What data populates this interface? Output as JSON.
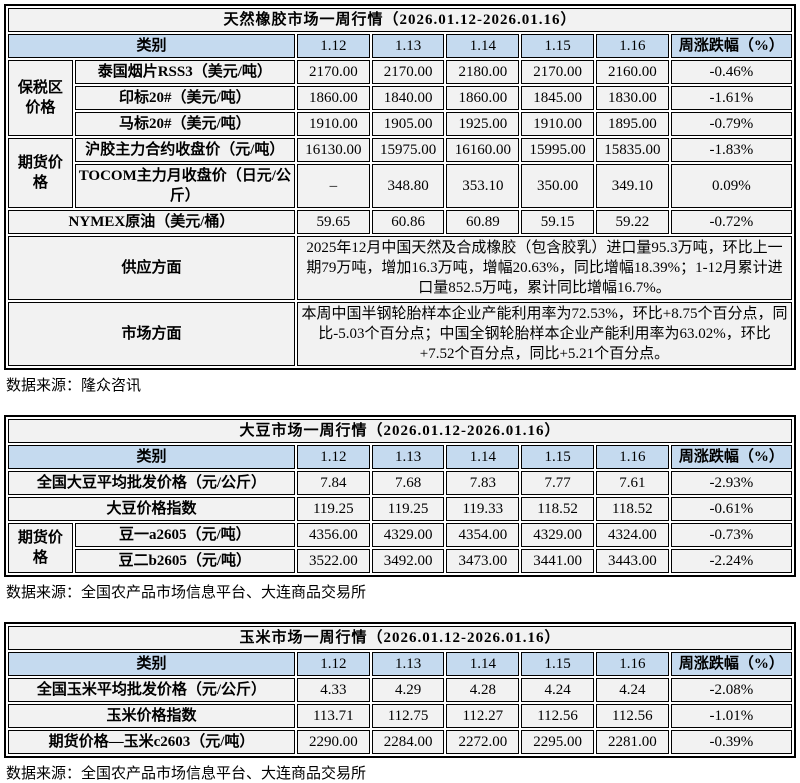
{
  "colors": {
    "title_bg": "#A6C9E8",
    "header_bg": "#C5DAEF",
    "row_bg": "#F2F2F2",
    "supply_label_bg": "#E3E3E3",
    "supply_text_bg": "#D9D9D9",
    "market_label_bg": "#CCE0F1",
    "market_text_bg": "#DEEBF7",
    "border": "#000000"
  },
  "rubber": {
    "title": "天然橡胶市场一周行情（2026.01.12-2026.01.16）",
    "header": {
      "category": "类别",
      "dates": [
        "1.12",
        "1.13",
        "1.14",
        "1.15",
        "1.16"
      ],
      "change": "周涨跌幅（%）"
    },
    "group_bonded": "保税区价格",
    "group_futures": "期货价格",
    "rows": [
      {
        "label": "泰国烟片RSS3（美元/吨）",
        "values": [
          "2170.00",
          "2170.00",
          "2180.00",
          "2170.00",
          "2160.00"
        ],
        "change": "-0.46%"
      },
      {
        "label": "印标20#（美元/吨）",
        "values": [
          "1860.00",
          "1840.00",
          "1860.00",
          "1845.00",
          "1830.00"
        ],
        "change": "-1.61%"
      },
      {
        "label": "马标20#（美元/吨）",
        "values": [
          "1910.00",
          "1905.00",
          "1925.00",
          "1910.00",
          "1895.00"
        ],
        "change": "-0.79%"
      },
      {
        "label": "沪胶主力合约收盘价（元/吨）",
        "values": [
          "16130.00",
          "15975.00",
          "16160.00",
          "15995.00",
          "15835.00"
        ],
        "change": "-1.83%"
      },
      {
        "label": "TOCOM主力月收盘价（日元/公斤）",
        "values": [
          "–",
          "348.80",
          "353.10",
          "350.00",
          "349.10"
        ],
        "change": "0.09%"
      },
      {
        "label": "NYMEX原油（美元/桶）",
        "values": [
          "59.65",
          "60.86",
          "60.89",
          "59.15",
          "59.22"
        ],
        "change": "-0.72%"
      }
    ],
    "supply": {
      "label": "供应方面",
      "text": "2025年12月中国天然及合成橡胶（包含胶乳）进口量95.3万吨，环比上一期79万吨，增加16.3万吨，增幅20.63%，同比增幅18.39%；1-12月累计进口量852.5万吨，累计同比增幅16.7%。"
    },
    "market": {
      "label": "市场方面",
      "text": "本周中国半钢轮胎样本企业产能利用率为72.53%，环比+8.75个百分点，同比-5.03个百分点；中国全钢轮胎样本企业产能利用率为63.02%，环比+7.52个百分点，同比+5.21个百分点。"
    },
    "source": "数据来源：隆众咨讯"
  },
  "soybean": {
    "title": "大豆市场一周行情（2026.01.12-2026.01.16）",
    "header": {
      "category": "类别",
      "dates": [
        "1.12",
        "1.13",
        "1.14",
        "1.15",
        "1.16"
      ],
      "change": "周涨跌幅（%）"
    },
    "group_futures": "期货价格",
    "rows": [
      {
        "label": "全国大豆平均批发价格（元/公斤）",
        "values": [
          "7.84",
          "7.68",
          "7.83",
          "7.77",
          "7.61"
        ],
        "change": "-2.93%"
      },
      {
        "label": "大豆价格指数",
        "values": [
          "119.25",
          "119.25",
          "119.33",
          "118.52",
          "118.52"
        ],
        "change": "-0.61%"
      },
      {
        "label": "豆一a2605（元/吨）",
        "values": [
          "4356.00",
          "4329.00",
          "4354.00",
          "4329.00",
          "4324.00"
        ],
        "change": "-0.73%"
      },
      {
        "label": "豆二b2605（元/吨）",
        "values": [
          "3522.00",
          "3492.00",
          "3473.00",
          "3441.00",
          "3443.00"
        ],
        "change": "-2.24%"
      }
    ],
    "source": "数据来源：全国农产品市场信息平台、大连商品交易所"
  },
  "corn": {
    "title": "玉米市场一周行情（2026.01.12-2026.01.16）",
    "header": {
      "category": "类别",
      "dates": [
        "1.12",
        "1.13",
        "1.14",
        "1.15",
        "1.16"
      ],
      "change": "周涨跌幅（%）"
    },
    "rows": [
      {
        "label": "全国玉米平均批发价格（元/公斤）",
        "values": [
          "4.33",
          "4.29",
          "4.28",
          "4.24",
          "4.24"
        ],
        "change": "-2.08%"
      },
      {
        "label": "玉米价格指数",
        "values": [
          "113.71",
          "112.75",
          "112.27",
          "112.56",
          "112.56"
        ],
        "change": "-1.01%"
      },
      {
        "label": "期货价格—玉米c2603（元/吨）",
        "values": [
          "2290.00",
          "2284.00",
          "2272.00",
          "2295.00",
          "2281.00"
        ],
        "change": "-0.39%"
      }
    ],
    "source": "数据来源：全国农产品市场信息平台、大连商品交易所"
  }
}
